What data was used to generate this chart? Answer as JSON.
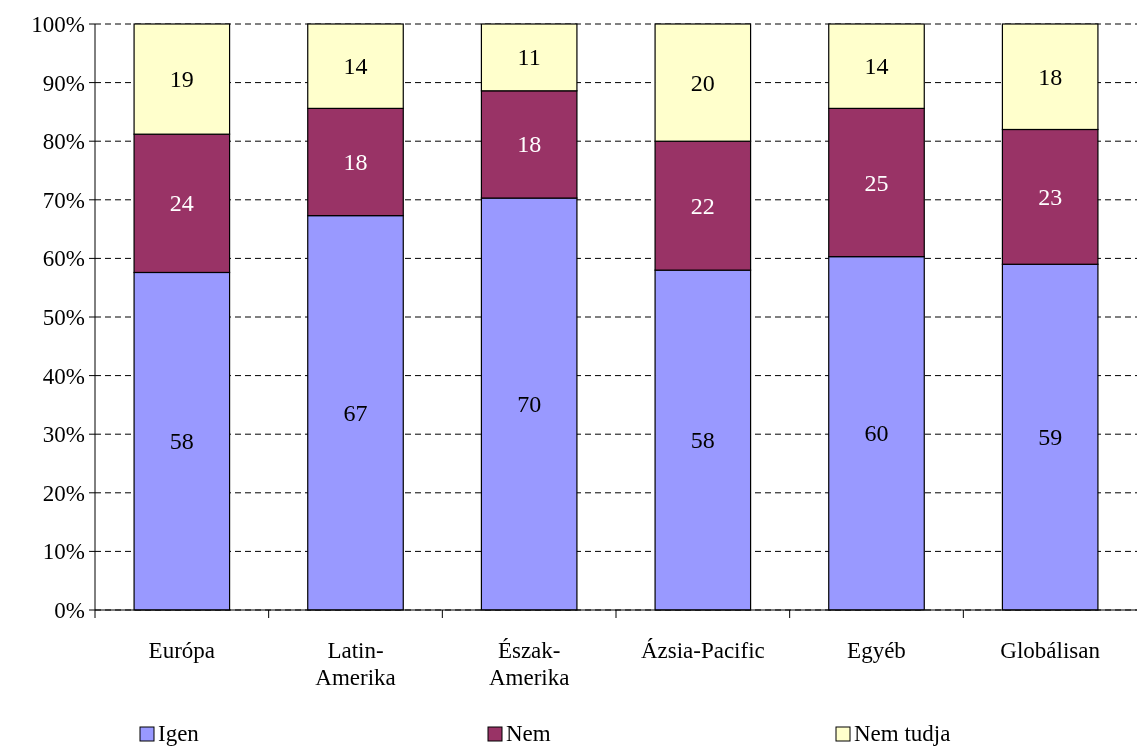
{
  "chart_data": {
    "type": "bar",
    "stacked": true,
    "categories": [
      "Európa",
      "Latin-\nAmerika",
      "Észak-\nAmerika",
      "Ázsia-Pacific",
      "Egyéb",
      "Globálisan"
    ],
    "series": [
      {
        "name": "Igen",
        "color": "#9999ff",
        "values": [
          57.6,
          67.3,
          70.3,
          58,
          60.3,
          59
        ],
        "value_labels": [
          "58",
          "67",
          "70",
          "58",
          "60",
          "59"
        ]
      },
      {
        "name": "Nem",
        "color": "#993366",
        "values": [
          23.6,
          18.3,
          18.3,
          22,
          25.3,
          23
        ],
        "value_labels": [
          "24",
          "18",
          "18",
          "22",
          "25",
          "23"
        ]
      },
      {
        "name": "Nem tudja",
        "color": "#ffffcc",
        "values": [
          18.8,
          14.4,
          11.4,
          20,
          14.4,
          18
        ],
        "value_labels": [
          "19",
          "14",
          "11",
          "20",
          "14",
          "18"
        ]
      }
    ],
    "ylim": [
      0,
      100
    ],
    "yticks": [
      {
        "value": 0,
        "label": "0%"
      },
      {
        "value": 10,
        "label": "10%"
      },
      {
        "value": 20,
        "label": "20%"
      },
      {
        "value": 30,
        "label": "30%"
      },
      {
        "value": 40,
        "label": "40%"
      },
      {
        "value": 50,
        "label": "50%"
      },
      {
        "value": 60,
        "label": "60%"
      },
      {
        "value": 70,
        "label": "70%"
      },
      {
        "value": 80,
        "label": "80%"
      },
      {
        "value": 90,
        "label": "90%"
      },
      {
        "value": 100,
        "label": "100%"
      }
    ],
    "grid": "y",
    "legend": "bottom"
  }
}
